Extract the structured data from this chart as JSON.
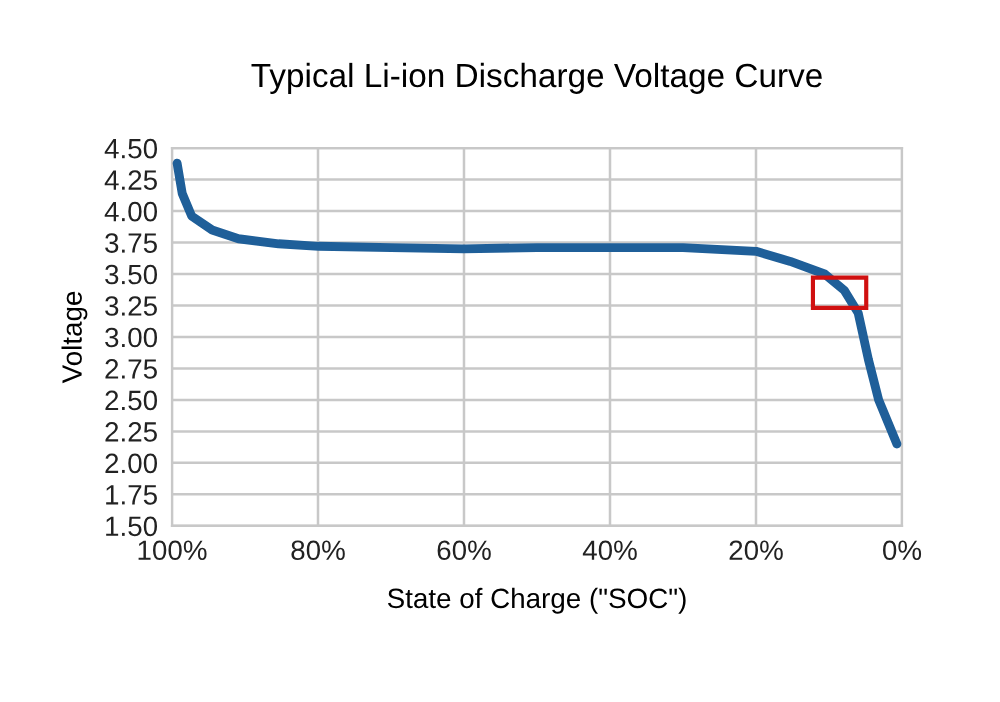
{
  "chart_data": {
    "type": "line",
    "title": "Typical Li-ion Discharge Voltage Curve",
    "xlabel": "State of Charge (\"SOC\")",
    "ylabel": "Voltage",
    "series": [
      {
        "color": "#1f5f99",
        "x": [
          99.3,
          98.6,
          97.3,
          94.5,
          90.9,
          85.4,
          79.9,
          70,
          60,
          50,
          40,
          30,
          20,
          15.3,
          10.6,
          7.9,
          6.0,
          4.6,
          3.2,
          0.7
        ],
        "values": [
          4.38,
          4.14,
          3.96,
          3.85,
          3.78,
          3.74,
          3.72,
          3.71,
          3.7,
          3.71,
          3.71,
          3.71,
          3.68,
          3.6,
          3.5,
          3.37,
          3.19,
          2.82,
          2.5,
          2.15
        ]
      }
    ],
    "xlim": [
      100,
      0
    ],
    "xticks": [
      {
        "value": 100,
        "label": "100%"
      },
      {
        "value": 80,
        "label": "80%"
      },
      {
        "value": 60,
        "label": "60%"
      },
      {
        "value": 40,
        "label": "40%"
      },
      {
        "value": 20,
        "label": "20%"
      },
      {
        "value": 0,
        "label": "0%"
      }
    ],
    "ylim": [
      1.5,
      4.5
    ],
    "yticks": [
      {
        "value": 1.5,
        "label": "1.50"
      },
      {
        "value": 1.75,
        "label": "1.75"
      },
      {
        "value": 2.0,
        "label": "2.00"
      },
      {
        "value": 2.25,
        "label": "2.25"
      },
      {
        "value": 2.5,
        "label": "2.50"
      },
      {
        "value": 2.75,
        "label": "2.75"
      },
      {
        "value": 3.0,
        "label": "3.00"
      },
      {
        "value": 3.25,
        "label": "3.25"
      },
      {
        "value": 3.5,
        "label": "3.50"
      },
      {
        "value": 3.75,
        "label": "3.75"
      },
      {
        "value": 4.0,
        "label": "4.00"
      },
      {
        "value": 4.25,
        "label": "4.25"
      },
      {
        "value": 4.5,
        "label": "4.50"
      }
    ],
    "grid": true,
    "legend": false,
    "marker": "none",
    "line_style": "solid"
  }
}
